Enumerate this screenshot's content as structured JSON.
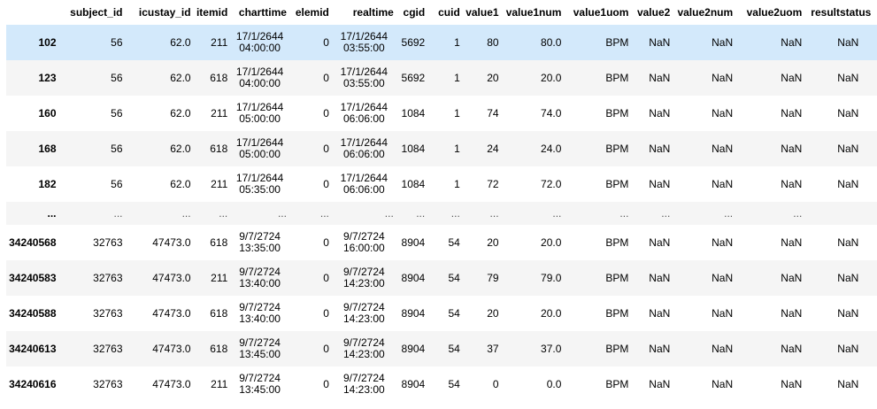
{
  "columns": [
    "",
    "subject_id",
    "icustay_id",
    "itemid",
    "charttime",
    "elemid",
    "realtime",
    "cgid",
    "cuid",
    "value1",
    "value1num",
    "value1uom",
    "value2",
    "value2num",
    "value2uom",
    "resultstatus"
  ],
  "rows": [
    {
      "idx": "102",
      "subject_id": "56",
      "icustay_id": "62.0",
      "itemid": "211",
      "charttime": [
        "17/1/2644",
        "04:00:00"
      ],
      "elemid": "0",
      "realtime": [
        "17/1/2644",
        "03:55:00"
      ],
      "cgid": "5692",
      "cuid": "1",
      "value1": "80",
      "value1num": "80.0",
      "value1uom": "BPM",
      "value2": "NaN",
      "value2num": "NaN",
      "value2uom": "NaN",
      "resultstatus": "NaN"
    },
    {
      "idx": "123",
      "subject_id": "56",
      "icustay_id": "62.0",
      "itemid": "618",
      "charttime": [
        "17/1/2644",
        "04:00:00"
      ],
      "elemid": "0",
      "realtime": [
        "17/1/2644",
        "03:55:00"
      ],
      "cgid": "5692",
      "cuid": "1",
      "value1": "20",
      "value1num": "20.0",
      "value1uom": "BPM",
      "value2": "NaN",
      "value2num": "NaN",
      "value2uom": "NaN",
      "resultstatus": "NaN"
    },
    {
      "idx": "160",
      "subject_id": "56",
      "icustay_id": "62.0",
      "itemid": "211",
      "charttime": [
        "17/1/2644",
        "05:00:00"
      ],
      "elemid": "0",
      "realtime": [
        "17/1/2644",
        "06:06:00"
      ],
      "cgid": "1084",
      "cuid": "1",
      "value1": "74",
      "value1num": "74.0",
      "value1uom": "BPM",
      "value2": "NaN",
      "value2num": "NaN",
      "value2uom": "NaN",
      "resultstatus": "NaN"
    },
    {
      "idx": "168",
      "subject_id": "56",
      "icustay_id": "62.0",
      "itemid": "618",
      "charttime": [
        "17/1/2644",
        "05:00:00"
      ],
      "elemid": "0",
      "realtime": [
        "17/1/2644",
        "06:06:00"
      ],
      "cgid": "1084",
      "cuid": "1",
      "value1": "24",
      "value1num": "24.0",
      "value1uom": "BPM",
      "value2": "NaN",
      "value2num": "NaN",
      "value2uom": "NaN",
      "resultstatus": "NaN"
    },
    {
      "idx": "182",
      "subject_id": "56",
      "icustay_id": "62.0",
      "itemid": "211",
      "charttime": [
        "17/1/2644",
        "05:35:00"
      ],
      "elemid": "0",
      "realtime": [
        "17/1/2644",
        "06:06:00"
      ],
      "cgid": "1084",
      "cuid": "1",
      "value1": "72",
      "value1num": "72.0",
      "value1uom": "BPM",
      "value2": "NaN",
      "value2num": "NaN",
      "value2uom": "NaN",
      "resultstatus": "NaN"
    },
    {
      "ellipsis": true,
      "idx": "...",
      "cell": "..."
    },
    {
      "idx": "34240568",
      "subject_id": "32763",
      "icustay_id": "47473.0",
      "itemid": "618",
      "charttime": [
        "9/7/2724",
        "13:35:00"
      ],
      "elemid": "0",
      "realtime": [
        "9/7/2724",
        "16:00:00"
      ],
      "cgid": "8904",
      "cuid": "54",
      "value1": "20",
      "value1num": "20.0",
      "value1uom": "BPM",
      "value2": "NaN",
      "value2num": "NaN",
      "value2uom": "NaN",
      "resultstatus": "NaN"
    },
    {
      "idx": "34240583",
      "subject_id": "32763",
      "icustay_id": "47473.0",
      "itemid": "211",
      "charttime": [
        "9/7/2724",
        "13:40:00"
      ],
      "elemid": "0",
      "realtime": [
        "9/7/2724",
        "14:23:00"
      ],
      "cgid": "8904",
      "cuid": "54",
      "value1": "79",
      "value1num": "79.0",
      "value1uom": "BPM",
      "value2": "NaN",
      "value2num": "NaN",
      "value2uom": "NaN",
      "resultstatus": "NaN"
    },
    {
      "idx": "34240588",
      "subject_id": "32763",
      "icustay_id": "47473.0",
      "itemid": "618",
      "charttime": [
        "9/7/2724",
        "13:40:00"
      ],
      "elemid": "0",
      "realtime": [
        "9/7/2724",
        "14:23:00"
      ],
      "cgid": "8904",
      "cuid": "54",
      "value1": "20",
      "value1num": "20.0",
      "value1uom": "BPM",
      "value2": "NaN",
      "value2num": "NaN",
      "value2uom": "NaN",
      "resultstatus": "NaN"
    },
    {
      "idx": "34240613",
      "subject_id": "32763",
      "icustay_id": "47473.0",
      "itemid": "618",
      "charttime": [
        "9/7/2724",
        "13:45:00"
      ],
      "elemid": "0",
      "realtime": [
        "9/7/2724",
        "14:23:00"
      ],
      "cgid": "8904",
      "cuid": "54",
      "value1": "37",
      "value1num": "37.0",
      "value1uom": "BPM",
      "value2": "NaN",
      "value2num": "NaN",
      "value2uom": "NaN",
      "resultstatus": "NaN"
    },
    {
      "idx": "34240616",
      "subject_id": "32763",
      "icustay_id": "47473.0",
      "itemid": "211",
      "charttime": [
        "9/7/2724",
        "13:45:00"
      ],
      "elemid": "0",
      "realtime": [
        "9/7/2724",
        "14:23:00"
      ],
      "cgid": "8904",
      "cuid": "54",
      "value1": "0",
      "value1num": "0.0",
      "value1uom": "BPM",
      "value2": "NaN",
      "value2num": "NaN",
      "value2uom": "NaN",
      "resultstatus": "NaN"
    }
  ],
  "colors": {
    "hover_row": "#d3e9fb",
    "striped_row": "#f5f5f5"
  }
}
